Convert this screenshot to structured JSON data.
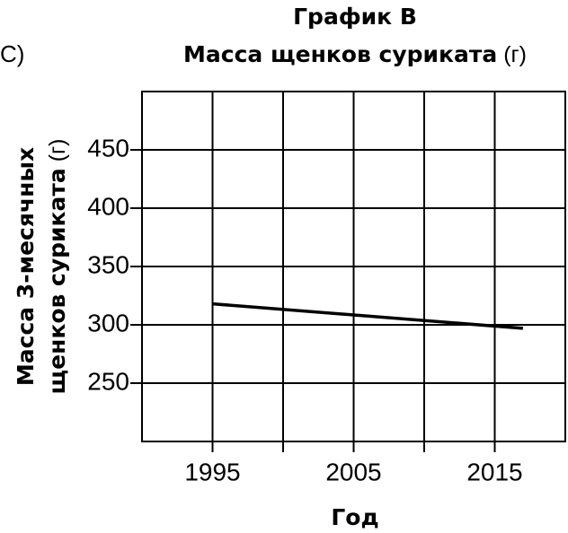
{
  "chart_data": {
    "type": "line",
    "panel_label": "C)",
    "title": "График В",
    "subtitle": "Масса щенков суриката",
    "subtitle_unit": "(г)",
    "ylabel_lines": [
      "Масса 3-месячных",
      "щенков суриката"
    ],
    "ylabel_unit": "(г)",
    "xlabel": "Год",
    "x": [
      1995,
      2017
    ],
    "values": [
      318,
      297
    ],
    "color": "#000000",
    "xlim": [
      1990,
      2020
    ],
    "xticks": [
      1995,
      2005,
      2015
    ],
    "xminorticks": [
      2000,
      2010
    ],
    "ylim": [
      200,
      500
    ],
    "yticks": [
      250,
      300,
      350,
      400,
      450
    ],
    "grid": true
  }
}
